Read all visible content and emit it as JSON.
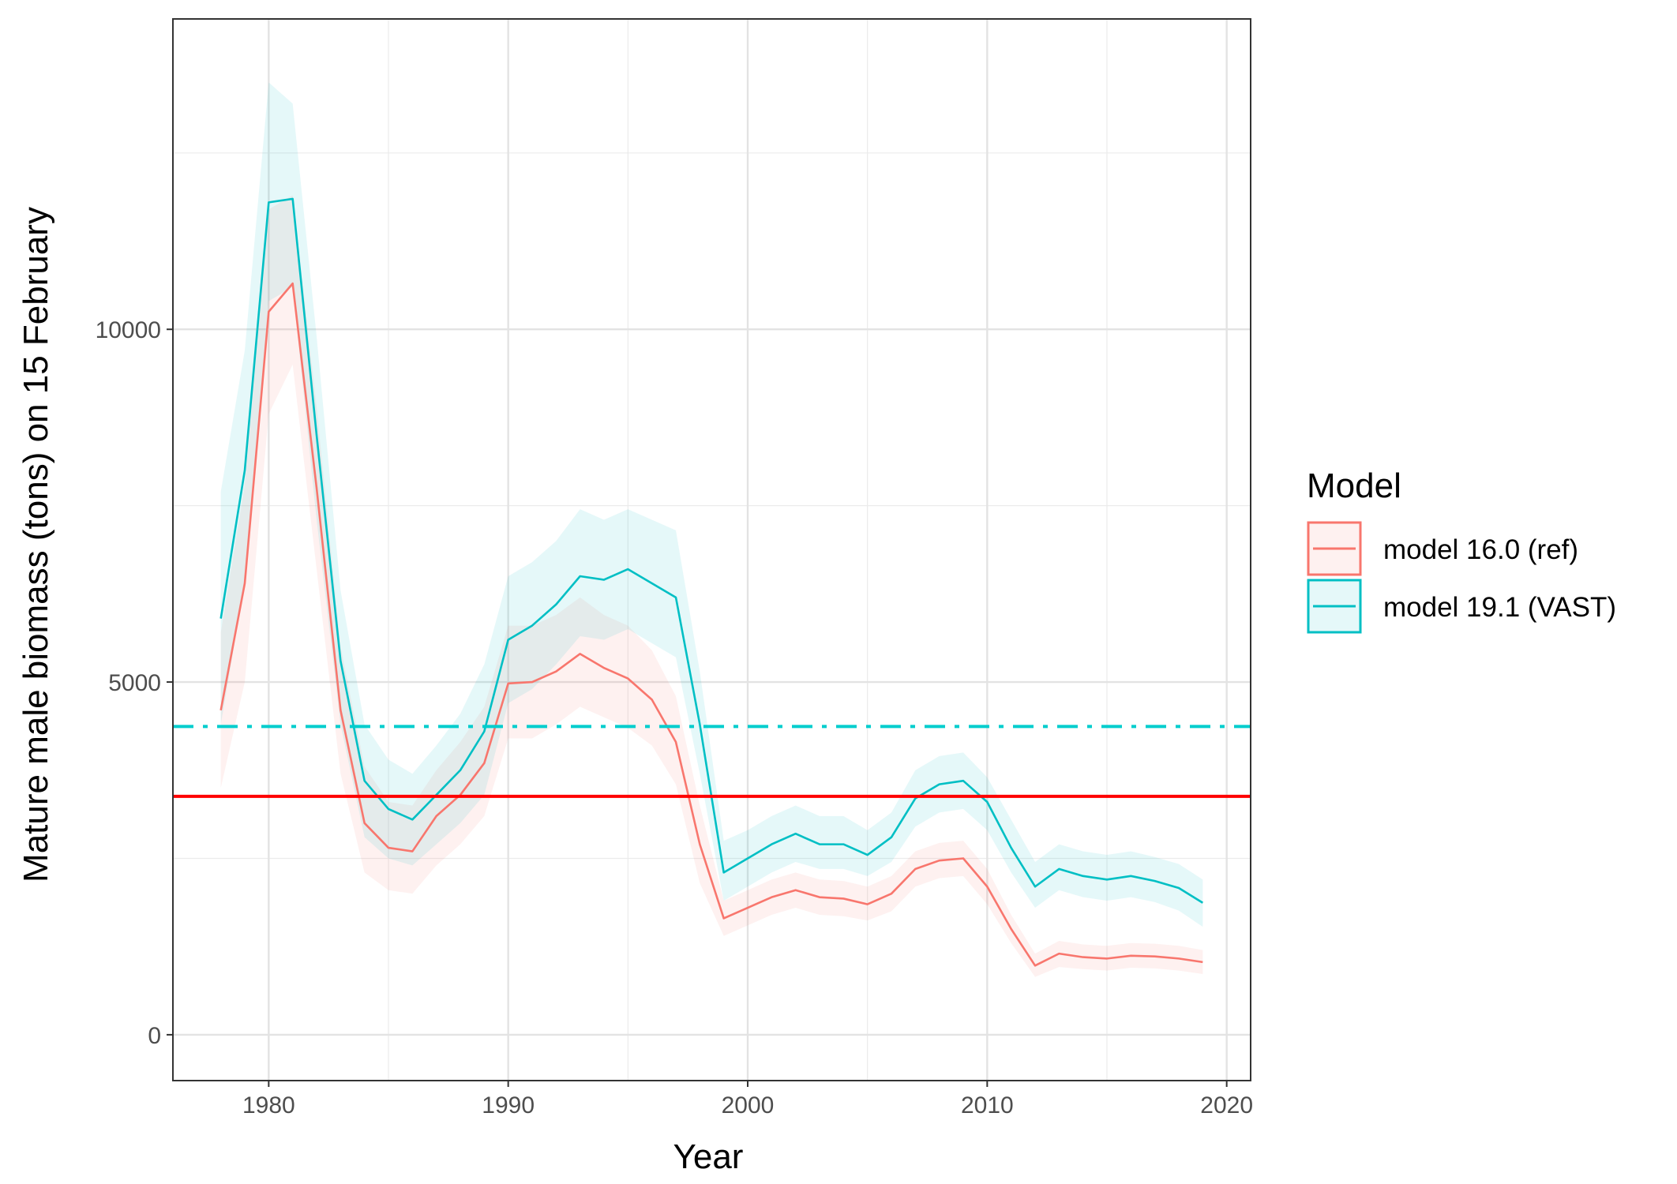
{
  "chart_data": {
    "type": "line",
    "title": "",
    "xlabel": "Year",
    "ylabel": "Mature male biomass (tons) on 15 February",
    "xlim": [
      1976,
      2021
    ],
    "ylim": [
      -650,
      14400
    ],
    "x_ticks": [
      1980,
      1990,
      2000,
      2010,
      2020
    ],
    "x_tick_labels": [
      "1980",
      "1990",
      "2000",
      "2010",
      "2020"
    ],
    "y_ticks": [
      0,
      5000,
      10000
    ],
    "y_tick_labels": [
      "0",
      "5000",
      "10000"
    ],
    "grid": true,
    "legend": {
      "title": "Model",
      "position": "right",
      "entries": [
        "model 16.0 (ref)",
        "model 19.1 (VAST)"
      ]
    },
    "series": [
      {
        "name": "model 16.0 (ref)",
        "color": "#F8766D",
        "x": [
          1978,
          1979,
          1980,
          1981,
          1982,
          1983,
          1984,
          1985,
          1986,
          1987,
          1988,
          1989,
          1990,
          1991,
          1992,
          1993,
          1994,
          1995,
          1996,
          1997,
          1998,
          1999,
          2000,
          2001,
          2002,
          2003,
          2004,
          2005,
          2006,
          2007,
          2008,
          2009,
          2010,
          2011,
          2012,
          2013,
          2014,
          2015,
          2016,
          2017,
          2018,
          2019
        ],
        "y": [
          4600,
          6400,
          10250,
          10650,
          7750,
          4600,
          3000,
          2650,
          2600,
          3100,
          3400,
          3850,
          4980,
          5000,
          5150,
          5400,
          5200,
          5050,
          4750,
          4150,
          2700,
          1650,
          1800,
          1950,
          2050,
          1950,
          1930,
          1850,
          2000,
          2350,
          2470,
          2500,
          2100,
          1500,
          980,
          1150,
          1100,
          1080,
          1120,
          1110,
          1080,
          1030
        ],
        "lower": [
          3500,
          5000,
          8800,
          9500,
          6600,
          3700,
          2300,
          2050,
          2000,
          2400,
          2700,
          3100,
          4200,
          4200,
          4400,
          4650,
          4500,
          4350,
          4100,
          3550,
          2150,
          1400,
          1550,
          1700,
          1800,
          1700,
          1680,
          1620,
          1750,
          2100,
          2220,
          2250,
          1850,
          1300,
          820,
          960,
          930,
          910,
          950,
          940,
          910,
          860
        ],
        "upper": [
          5700,
          7800,
          11700,
          11900,
          8900,
          5500,
          3800,
          3300,
          3250,
          3750,
          4150,
          4650,
          5800,
          5800,
          5950,
          6200,
          5950,
          5800,
          5450,
          4800,
          3250,
          1900,
          2050,
          2200,
          2300,
          2200,
          2180,
          2100,
          2250,
          2600,
          2720,
          2750,
          2350,
          1700,
          1150,
          1330,
          1280,
          1260,
          1300,
          1290,
          1260,
          1200
        ]
      },
      {
        "name": "model 19.1 (VAST)",
        "color": "#00BFC4",
        "x": [
          1978,
          1979,
          1980,
          1981,
          1982,
          1983,
          1984,
          1985,
          1986,
          1987,
          1988,
          1989,
          1990,
          1991,
          1992,
          1993,
          1994,
          1995,
          1996,
          1997,
          1998,
          1999,
          2000,
          2001,
          2002,
          2003,
          2004,
          2005,
          2006,
          2007,
          2008,
          2009,
          2010,
          2011,
          2012,
          2013,
          2014,
          2015,
          2016,
          2017,
          2018,
          2019
        ],
        "y": [
          5900,
          8000,
          11800,
          11850,
          8500,
          5300,
          3600,
          3200,
          3050,
          3400,
          3750,
          4300,
          5600,
          5800,
          6100,
          6500,
          6450,
          6600,
          6400,
          6200,
          4400,
          2300,
          2500,
          2700,
          2850,
          2700,
          2700,
          2550,
          2800,
          3350,
          3550,
          3600,
          3300,
          2650,
          2100,
          2350,
          2250,
          2200,
          2250,
          2180,
          2080,
          1870
        ],
        "lower": [
          4400,
          6400,
          10400,
          10600,
          7300,
          4400,
          2800,
          2500,
          2400,
          2700,
          3000,
          3400,
          4700,
          4900,
          5250,
          5650,
          5600,
          5750,
          5550,
          5350,
          3700,
          1900,
          2100,
          2300,
          2450,
          2350,
          2350,
          2250,
          2450,
          2950,
          3150,
          3200,
          2900,
          2300,
          1800,
          2050,
          1950,
          1900,
          1950,
          1880,
          1760,
          1530
        ],
        "upper": [
          7700,
          9700,
          13500,
          13200,
          9900,
          6300,
          4400,
          3900,
          3700,
          4100,
          4550,
          5250,
          6500,
          6700,
          7000,
          7450,
          7300,
          7450,
          7300,
          7150,
          5150,
          2750,
          2900,
          3100,
          3250,
          3100,
          3100,
          2900,
          3150,
          3750,
          3950,
          4000,
          3650,
          3050,
          2450,
          2700,
          2600,
          2550,
          2600,
          2520,
          2420,
          2200
        ]
      }
    ],
    "reference_lines": [
      {
        "name": "model 16.0 (ref) reference",
        "y": 3380,
        "color": "#FF0000",
        "style": "solid"
      },
      {
        "name": "model 19.1 (VAST) reference",
        "y": 4370,
        "color": "#00CDCD",
        "style": "dashdot"
      }
    ]
  }
}
